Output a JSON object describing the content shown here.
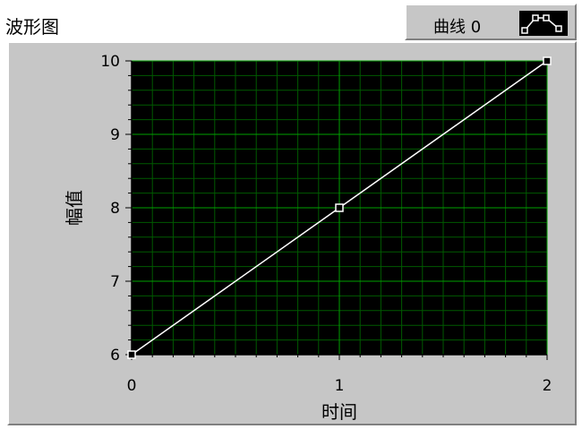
{
  "graph_label": "波形图",
  "legend": {
    "plot_name": "曲线 0",
    "swatch_icon": "line-with-square-markers-icon"
  },
  "colors": {
    "panel": "#c6c6c6",
    "plot_background": "#000000",
    "major_grid": "#00a000",
    "minor_grid": "#005a00",
    "trace": "#ffffff"
  },
  "chart_data": {
    "type": "line",
    "xlabel": "时间",
    "ylabel": "幅值",
    "xlim": [
      0,
      2
    ],
    "ylim": [
      6,
      10
    ],
    "x_ticks": [
      "0",
      "1",
      "2"
    ],
    "y_ticks": [
      "6",
      "7",
      "8",
      "9",
      "10"
    ],
    "grid": true,
    "marker": "square",
    "series": [
      {
        "name": "曲线 0",
        "x": [
          0,
          1,
          2
        ],
        "y": [
          6,
          8,
          10
        ]
      }
    ]
  }
}
